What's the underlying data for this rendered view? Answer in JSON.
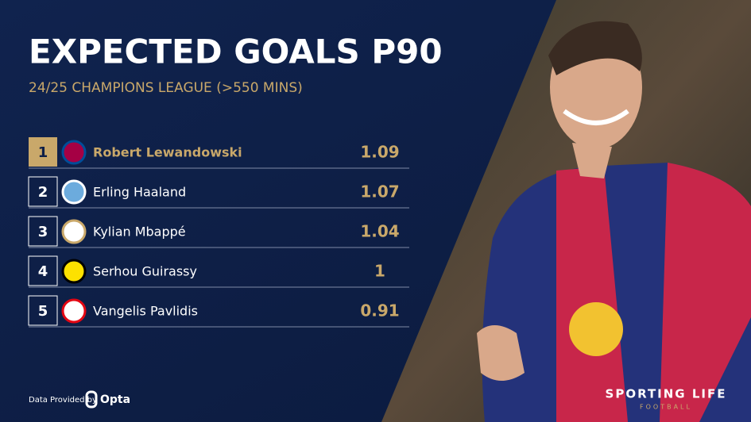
{
  "header": {
    "title": "EXPECTED GOALS P90",
    "subtitle": "24/25 CHAMPIONS LEAGUE (>550 MINS)"
  },
  "table": {
    "rows": [
      {
        "rank": 1,
        "player": "Robert Lewandowski",
        "value": 1.09
      },
      {
        "rank": 2,
        "player": "Erling Haaland",
        "value": 1.07
      },
      {
        "rank": 3,
        "player": "Kylian Mbappé",
        "value": 1.04
      },
      {
        "rank": 4,
        "player": "Serhou Guirassy",
        "value": 1
      },
      {
        "rank": 5,
        "player": "Vangelis Pavlidis",
        "value": 0.91
      }
    ]
  },
  "footer": {
    "credit": "Data Provided by",
    "provider": "Opta",
    "brand": "SPORTING LIFE",
    "brand_sub": "FOOTBALL"
  }
}
